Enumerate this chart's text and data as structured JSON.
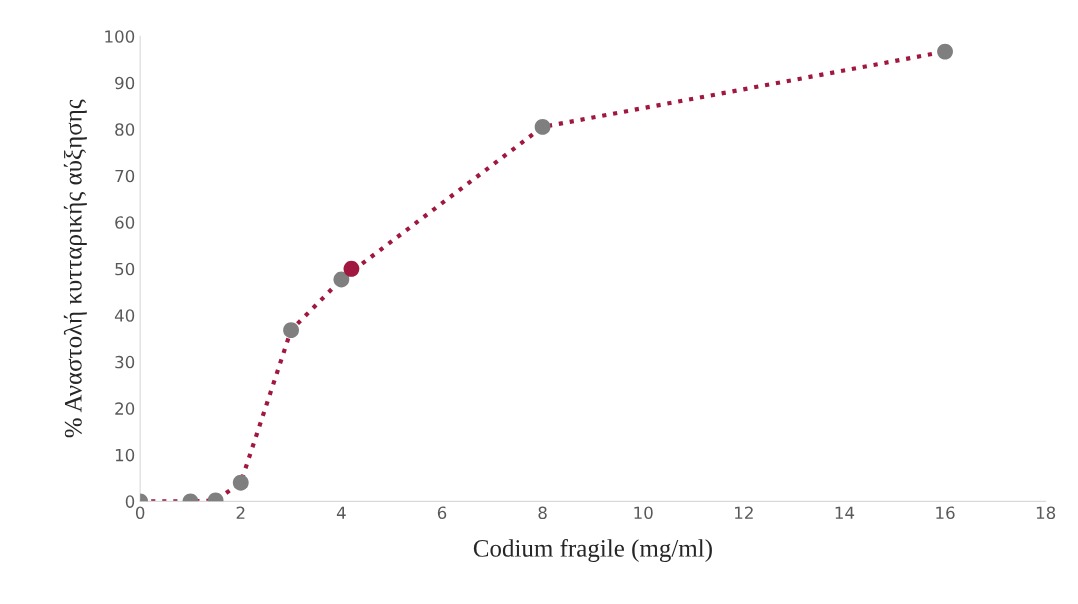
{
  "chart_data": {
    "type": "line",
    "xlabel": "Codium fragile (mg/ml)",
    "ylabel": "% Αναστολή κυτταρικής αύξησης",
    "series": [
      {
        "color": "#a0173f",
        "line_style": "dotted",
        "marker": "none",
        "x": [
          0,
          1,
          1.5,
          2,
          3,
          4,
          8,
          16
        ],
        "values": [
          0,
          0,
          0.2,
          4,
          36.8,
          47.7,
          80.5,
          96.7
        ]
      },
      {
        "type": "scatter",
        "color": "#7f7f7f",
        "marker": "circle",
        "x": [
          0,
          1,
          1.5,
          2,
          3,
          4,
          8,
          16
        ],
        "values": [
          0,
          0,
          0.2,
          4,
          36.8,
          47.7,
          80.5,
          96.7
        ]
      },
      {
        "type": "scatter",
        "color": "#a0173f",
        "marker": "circle",
        "x": [
          4.2
        ],
        "values": [
          50
        ]
      }
    ],
    "xlim": [
      0,
      18
    ],
    "xticks": [
      0,
      2,
      4,
      6,
      8,
      10,
      12,
      14,
      16,
      18
    ],
    "ylim": [
      0,
      100
    ],
    "yticks": [
      0,
      10,
      20,
      30,
      40,
      50,
      60,
      70,
      80,
      90,
      100
    ],
    "grid": false,
    "legend": false
  }
}
